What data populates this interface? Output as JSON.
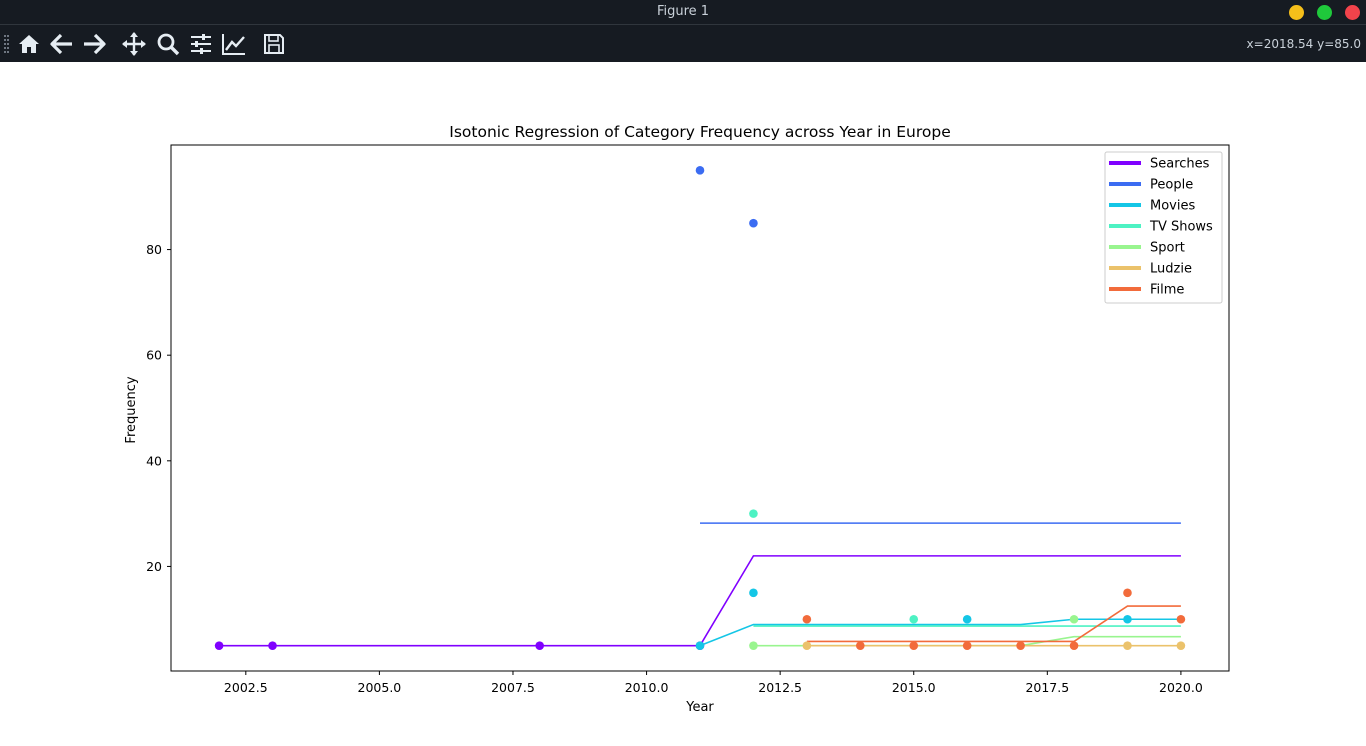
{
  "window": {
    "title": "Figure 1",
    "controls": {
      "minimize_color": "#f5bf1a",
      "maximize_color": "#1fc93b",
      "close_color": "#f2434b"
    }
  },
  "toolbar": {
    "items": [
      {
        "name": "home-icon"
      },
      {
        "name": "back-arrow-icon"
      },
      {
        "name": "forward-arrow-icon"
      },
      {
        "name": "pan-icon"
      },
      {
        "name": "zoom-icon"
      },
      {
        "name": "configure-subplots-icon"
      },
      {
        "name": "edit-axis-icon"
      },
      {
        "name": "save-icon"
      }
    ],
    "coords": "x=2018.54 y=85.0"
  },
  "chart_data": {
    "type": "line",
    "title": "Isotonic Regression of Category Frequency across Year in Europe",
    "xlabel": "Year",
    "ylabel": "Frequency",
    "xlim": [
      2001.1,
      2020.9
    ],
    "ylim": [
      0.2,
      99.8
    ],
    "xticks": [
      "2002.5",
      "2005.0",
      "2007.5",
      "2010.0",
      "2012.5",
      "2015.0",
      "2017.5",
      "2020.0"
    ],
    "yticks": [
      "20",
      "40",
      "60",
      "80"
    ],
    "legend_position": "upper right",
    "series": [
      {
        "name": "Searches",
        "color": "#8000ff",
        "points": [
          [
            2002,
            5
          ],
          [
            2003,
            5
          ],
          [
            2008,
            5
          ],
          [
            2011,
            5
          ]
        ],
        "fit": [
          [
            2002,
            5
          ],
          [
            2011,
            5
          ],
          [
            2012,
            22
          ],
          [
            2020,
            22
          ]
        ]
      },
      {
        "name": "People",
        "color": "#3b6cf2",
        "points": [
          [
            2011,
            95
          ],
          [
            2012,
            85
          ]
        ],
        "fit": [
          [
            2011,
            28.2
          ],
          [
            2020,
            28.2
          ]
        ]
      },
      {
        "name": "Movies",
        "color": "#14c6e6",
        "points": [
          [
            2011,
            5
          ],
          [
            2012,
            15
          ],
          [
            2016,
            10
          ],
          [
            2019,
            10
          ]
        ],
        "fit": [
          [
            2011,
            5
          ],
          [
            2012,
            9
          ],
          [
            2017,
            9
          ],
          [
            2018,
            10
          ],
          [
            2020,
            10
          ]
        ]
      },
      {
        "name": "TV Shows",
        "color": "#4df2c3",
        "points": [
          [
            2012,
            30
          ],
          [
            2015,
            10
          ]
        ],
        "fit": [
          [
            2012,
            8.7
          ],
          [
            2020,
            8.7
          ]
        ]
      },
      {
        "name": "Sport",
        "color": "#99f58f",
        "points": [
          [
            2012,
            5
          ],
          [
            2018,
            10
          ]
        ],
        "fit": [
          [
            2012,
            5
          ],
          [
            2017,
            5
          ],
          [
            2018,
            6.7
          ],
          [
            2020,
            6.7
          ]
        ]
      },
      {
        "name": "Ludzie",
        "color": "#ebc26b",
        "points": [
          [
            2013,
            5
          ],
          [
            2019,
            5
          ],
          [
            2020,
            5
          ]
        ],
        "fit": [
          [
            2013,
            5
          ],
          [
            2020,
            5
          ]
        ]
      },
      {
        "name": "Filme",
        "color": "#f26b3b",
        "points": [
          [
            2013,
            10
          ],
          [
            2014,
            5
          ],
          [
            2015,
            5
          ],
          [
            2016,
            5
          ],
          [
            2017,
            5
          ],
          [
            2018,
            5
          ],
          [
            2019,
            15
          ],
          [
            2020,
            10
          ]
        ],
        "fit": [
          [
            2013,
            5.8
          ],
          [
            2018,
            5.8
          ],
          [
            2019,
            12.5
          ],
          [
            2020,
            12.5
          ]
        ]
      }
    ]
  }
}
